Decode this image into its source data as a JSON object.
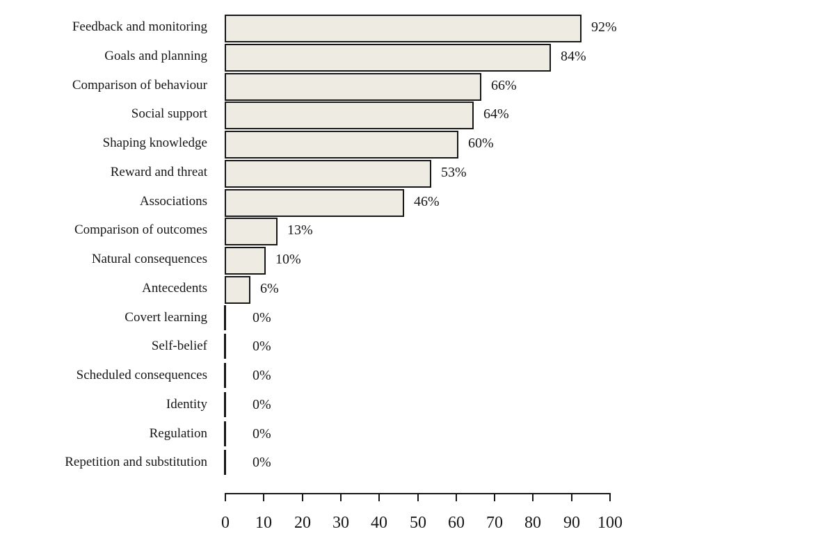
{
  "chart_data": {
    "type": "bar",
    "orientation": "horizontal",
    "categories": [
      "Feedback and monitoring",
      "Goals and planning",
      "Comparison of behaviour",
      "Social support",
      "Shaping knowledge",
      "Reward and threat",
      "Associations",
      "Comparison of outcomes",
      "Natural consequences",
      "Antecedents",
      "Covert learning",
      "Self-belief",
      "Scheduled consequences",
      "Identity",
      "Regulation",
      "Repetition and substitution"
    ],
    "values": [
      92,
      84,
      66,
      64,
      60,
      53,
      46,
      13,
      10,
      6,
      0,
      0,
      0,
      0,
      0,
      0
    ],
    "value_labels": [
      "92%",
      "84%",
      "66%",
      "64%",
      "60%",
      "53%",
      "46%",
      "13%",
      "10%",
      "6%",
      "0%",
      "0%",
      "0%",
      "0%",
      "0%",
      "0%"
    ],
    "x_ticks": [
      "0",
      "10",
      "20",
      "30",
      "40",
      "50",
      "60",
      "70",
      "80",
      "90",
      "100"
    ],
    "xlim": [
      0,
      100
    ],
    "grid": false,
    "legend": false,
    "bar_fill": "#EEECE2",
    "bar_border": "#161616",
    "text_color": "#161616"
  }
}
